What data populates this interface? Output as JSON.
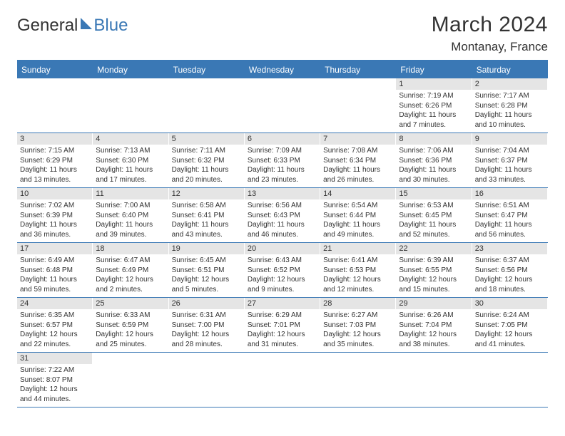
{
  "logo": {
    "text1": "General",
    "text2": "Blue"
  },
  "title": {
    "month": "March 2024",
    "location": "Montanay, France"
  },
  "colors": {
    "accent": "#3a78b5",
    "daynum_bg": "#e5e5e5",
    "text": "#333333"
  },
  "dow": [
    "Sunday",
    "Monday",
    "Tuesday",
    "Wednesday",
    "Thursday",
    "Friday",
    "Saturday"
  ],
  "weeks": [
    [
      {
        "n": "",
        "sr": "",
        "ss": "",
        "dl": ""
      },
      {
        "n": "",
        "sr": "",
        "ss": "",
        "dl": ""
      },
      {
        "n": "",
        "sr": "",
        "ss": "",
        "dl": ""
      },
      {
        "n": "",
        "sr": "",
        "ss": "",
        "dl": ""
      },
      {
        "n": "",
        "sr": "",
        "ss": "",
        "dl": ""
      },
      {
        "n": "1",
        "sr": "Sunrise: 7:19 AM",
        "ss": "Sunset: 6:26 PM",
        "dl": "Daylight: 11 hours and 7 minutes."
      },
      {
        "n": "2",
        "sr": "Sunrise: 7:17 AM",
        "ss": "Sunset: 6:28 PM",
        "dl": "Daylight: 11 hours and 10 minutes."
      }
    ],
    [
      {
        "n": "3",
        "sr": "Sunrise: 7:15 AM",
        "ss": "Sunset: 6:29 PM",
        "dl": "Daylight: 11 hours and 13 minutes."
      },
      {
        "n": "4",
        "sr": "Sunrise: 7:13 AM",
        "ss": "Sunset: 6:30 PM",
        "dl": "Daylight: 11 hours and 17 minutes."
      },
      {
        "n": "5",
        "sr": "Sunrise: 7:11 AM",
        "ss": "Sunset: 6:32 PM",
        "dl": "Daylight: 11 hours and 20 minutes."
      },
      {
        "n": "6",
        "sr": "Sunrise: 7:09 AM",
        "ss": "Sunset: 6:33 PM",
        "dl": "Daylight: 11 hours and 23 minutes."
      },
      {
        "n": "7",
        "sr": "Sunrise: 7:08 AM",
        "ss": "Sunset: 6:34 PM",
        "dl": "Daylight: 11 hours and 26 minutes."
      },
      {
        "n": "8",
        "sr": "Sunrise: 7:06 AM",
        "ss": "Sunset: 6:36 PM",
        "dl": "Daylight: 11 hours and 30 minutes."
      },
      {
        "n": "9",
        "sr": "Sunrise: 7:04 AM",
        "ss": "Sunset: 6:37 PM",
        "dl": "Daylight: 11 hours and 33 minutes."
      }
    ],
    [
      {
        "n": "10",
        "sr": "Sunrise: 7:02 AM",
        "ss": "Sunset: 6:39 PM",
        "dl": "Daylight: 11 hours and 36 minutes."
      },
      {
        "n": "11",
        "sr": "Sunrise: 7:00 AM",
        "ss": "Sunset: 6:40 PM",
        "dl": "Daylight: 11 hours and 39 minutes."
      },
      {
        "n": "12",
        "sr": "Sunrise: 6:58 AM",
        "ss": "Sunset: 6:41 PM",
        "dl": "Daylight: 11 hours and 43 minutes."
      },
      {
        "n": "13",
        "sr": "Sunrise: 6:56 AM",
        "ss": "Sunset: 6:43 PM",
        "dl": "Daylight: 11 hours and 46 minutes."
      },
      {
        "n": "14",
        "sr": "Sunrise: 6:54 AM",
        "ss": "Sunset: 6:44 PM",
        "dl": "Daylight: 11 hours and 49 minutes."
      },
      {
        "n": "15",
        "sr": "Sunrise: 6:53 AM",
        "ss": "Sunset: 6:45 PM",
        "dl": "Daylight: 11 hours and 52 minutes."
      },
      {
        "n": "16",
        "sr": "Sunrise: 6:51 AM",
        "ss": "Sunset: 6:47 PM",
        "dl": "Daylight: 11 hours and 56 minutes."
      }
    ],
    [
      {
        "n": "17",
        "sr": "Sunrise: 6:49 AM",
        "ss": "Sunset: 6:48 PM",
        "dl": "Daylight: 11 hours and 59 minutes."
      },
      {
        "n": "18",
        "sr": "Sunrise: 6:47 AM",
        "ss": "Sunset: 6:49 PM",
        "dl": "Daylight: 12 hours and 2 minutes."
      },
      {
        "n": "19",
        "sr": "Sunrise: 6:45 AM",
        "ss": "Sunset: 6:51 PM",
        "dl": "Daylight: 12 hours and 5 minutes."
      },
      {
        "n": "20",
        "sr": "Sunrise: 6:43 AM",
        "ss": "Sunset: 6:52 PM",
        "dl": "Daylight: 12 hours and 9 minutes."
      },
      {
        "n": "21",
        "sr": "Sunrise: 6:41 AM",
        "ss": "Sunset: 6:53 PM",
        "dl": "Daylight: 12 hours and 12 minutes."
      },
      {
        "n": "22",
        "sr": "Sunrise: 6:39 AM",
        "ss": "Sunset: 6:55 PM",
        "dl": "Daylight: 12 hours and 15 minutes."
      },
      {
        "n": "23",
        "sr": "Sunrise: 6:37 AM",
        "ss": "Sunset: 6:56 PM",
        "dl": "Daylight: 12 hours and 18 minutes."
      }
    ],
    [
      {
        "n": "24",
        "sr": "Sunrise: 6:35 AM",
        "ss": "Sunset: 6:57 PM",
        "dl": "Daylight: 12 hours and 22 minutes."
      },
      {
        "n": "25",
        "sr": "Sunrise: 6:33 AM",
        "ss": "Sunset: 6:59 PM",
        "dl": "Daylight: 12 hours and 25 minutes."
      },
      {
        "n": "26",
        "sr": "Sunrise: 6:31 AM",
        "ss": "Sunset: 7:00 PM",
        "dl": "Daylight: 12 hours and 28 minutes."
      },
      {
        "n": "27",
        "sr": "Sunrise: 6:29 AM",
        "ss": "Sunset: 7:01 PM",
        "dl": "Daylight: 12 hours and 31 minutes."
      },
      {
        "n": "28",
        "sr": "Sunrise: 6:27 AM",
        "ss": "Sunset: 7:03 PM",
        "dl": "Daylight: 12 hours and 35 minutes."
      },
      {
        "n": "29",
        "sr": "Sunrise: 6:26 AM",
        "ss": "Sunset: 7:04 PM",
        "dl": "Daylight: 12 hours and 38 minutes."
      },
      {
        "n": "30",
        "sr": "Sunrise: 6:24 AM",
        "ss": "Sunset: 7:05 PM",
        "dl": "Daylight: 12 hours and 41 minutes."
      }
    ],
    [
      {
        "n": "31",
        "sr": "Sunrise: 7:22 AM",
        "ss": "Sunset: 8:07 PM",
        "dl": "Daylight: 12 hours and 44 minutes."
      },
      {
        "n": "",
        "sr": "",
        "ss": "",
        "dl": ""
      },
      {
        "n": "",
        "sr": "",
        "ss": "",
        "dl": ""
      },
      {
        "n": "",
        "sr": "",
        "ss": "",
        "dl": ""
      },
      {
        "n": "",
        "sr": "",
        "ss": "",
        "dl": ""
      },
      {
        "n": "",
        "sr": "",
        "ss": "",
        "dl": ""
      },
      {
        "n": "",
        "sr": "",
        "ss": "",
        "dl": ""
      }
    ]
  ]
}
